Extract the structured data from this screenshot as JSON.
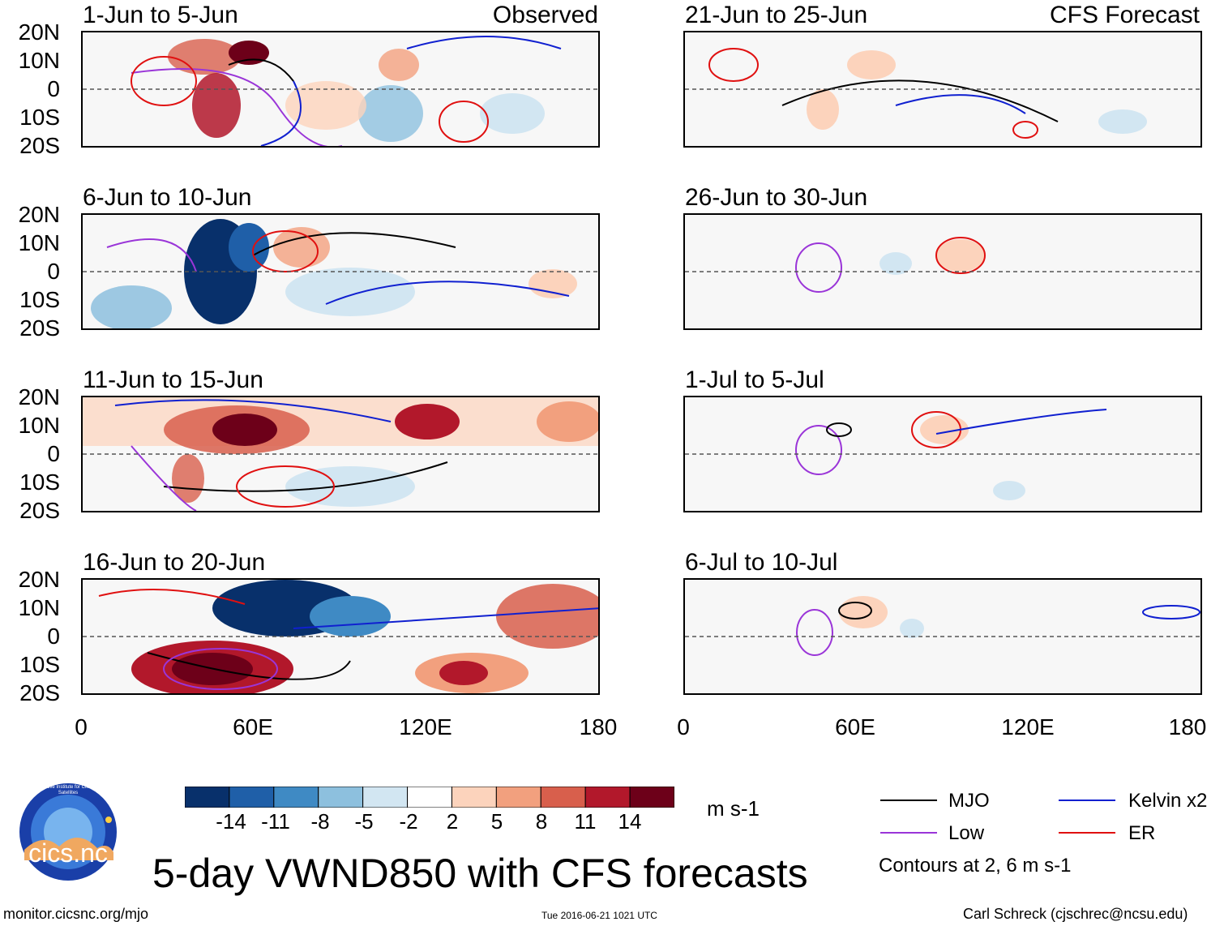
{
  "labels": {
    "observed": "Observed",
    "forecast": "CFS Forecast"
  },
  "y_labels": [
    "20N",
    "10N",
    "0",
    "10S",
    "20S"
  ],
  "x_labels": [
    "0",
    "60E",
    "120E",
    "180"
  ],
  "panels": [
    {
      "title": "1-Jun to 5-Jun"
    },
    {
      "title": "6-Jun to 10-Jun"
    },
    {
      "title": "11-Jun to 15-Jun"
    },
    {
      "title": "16-Jun to 20-Jun"
    },
    {
      "title": "21-Jun to 25-Jun"
    },
    {
      "title": "26-Jun to 30-Jun"
    },
    {
      "title": "1-Jul to 5-Jul"
    },
    {
      "title": "6-Jul to 10-Jul"
    }
  ],
  "colorbar": {
    "labels": [
      "-14",
      "-11",
      "-8",
      "-5",
      "-2",
      "2",
      "5",
      "8",
      "11",
      "14"
    ],
    "colors": [
      "#08306b",
      "#1f5fa8",
      "#3f8ac4",
      "#8dc0de",
      "#d2e6f2",
      "#ffffff",
      "#fcd3bc",
      "#f2a07e",
      "#d85f4c",
      "#b2182b",
      "#6d0019"
    ],
    "units": "m s-1"
  },
  "legend": {
    "mjo": "MJO",
    "kelvin": "Kelvin x2",
    "low": "Low",
    "er": "ER",
    "contours_note": "Contours at 2, 6 m s-1",
    "colors": {
      "mjo": "#000000",
      "kelvin": "#1020d0",
      "low": "#9a35d8",
      "er": "#e01010"
    }
  },
  "logo": {
    "text": "cics.nc",
    "arc": "Cooperative Institute for Climate and Satellites"
  },
  "main_title": "5-day VWND850 with CFS forecasts",
  "footer": {
    "url": "monitor.cicsnc.org/mjo",
    "timestamp": "Tue 2016-06-21 1021 UTC",
    "credit": "Carl Schreck (cjschrec@ncsu.edu)"
  }
}
